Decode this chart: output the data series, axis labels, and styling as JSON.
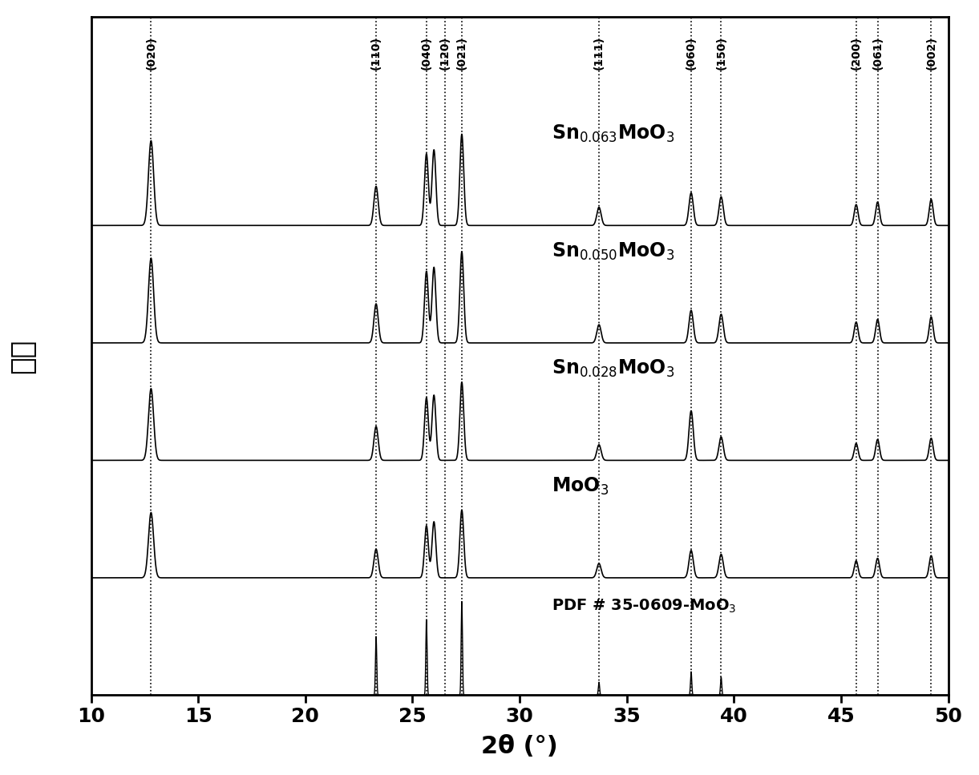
{
  "xmin": 10,
  "xmax": 50,
  "xlabel": "2θ (°)",
  "ylabel": "强度",
  "background_color": "#ffffff",
  "dashed_lines": [
    12.8,
    23.3,
    25.65,
    26.5,
    27.3,
    33.7,
    38.0,
    39.4,
    45.7,
    46.7,
    49.2
  ],
  "tick_positions": [
    10,
    15,
    20,
    25,
    30,
    35,
    40,
    45,
    50
  ],
  "miller_labels": [
    [
      12.8,
      "(020)"
    ],
    [
      23.3,
      "(110)"
    ],
    [
      25.65,
      "(040)"
    ],
    [
      26.5,
      "(120)"
    ],
    [
      27.3,
      "(021)"
    ],
    [
      33.7,
      "(111)"
    ],
    [
      38.0,
      "(060)"
    ],
    [
      39.4,
      "(150)"
    ],
    [
      45.7,
      "(200)"
    ],
    [
      46.7,
      "(061)"
    ],
    [
      49.2,
      "(002)"
    ]
  ],
  "series_offsets": [
    3.6,
    2.7,
    1.8,
    0.9,
    0.0
  ],
  "label_positions": [
    [
      31.0,
      4.25,
      "Sn$_{0.063}$MoO$_3$"
    ],
    [
      31.0,
      3.35,
      "Sn$_{0.050}$MoO$_3$"
    ],
    [
      31.0,
      2.42,
      "Sn$_{0.028}$MoO$_3$"
    ],
    [
      31.0,
      1.48,
      "MoO$_3$"
    ],
    [
      31.0,
      0.52,
      "PDF # 35-0609-MoO$_3$"
    ]
  ]
}
